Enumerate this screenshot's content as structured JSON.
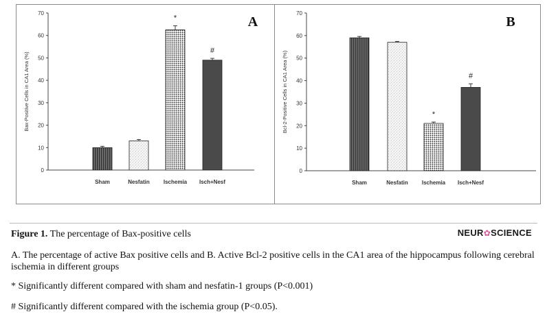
{
  "chart_data": [
    {
      "type": "bar",
      "panel_label": "A",
      "ylabel": "Bax-Positive Cells in CA1 Area (%)",
      "xlabel": "",
      "ylim": [
        0,
        70
      ],
      "yticks": [
        0,
        10,
        20,
        30,
        40,
        50,
        60,
        70
      ],
      "categories": [
        "Sham",
        "Nesfatin",
        "Ischemia",
        "Isch+Nesf"
      ],
      "values": [
        10,
        13,
        62.5,
        49
      ],
      "errors": [
        0.6,
        0.6,
        1.8,
        0.8
      ],
      "annotations": [
        "",
        "",
        "*",
        "#"
      ],
      "patterns": [
        "vertical-dark",
        "light-speckle",
        "dotted",
        "solid-dark"
      ],
      "grid": false
    },
    {
      "type": "bar",
      "panel_label": "B",
      "ylabel": "Bcl-2-Positive Cells in CA1 Area (%)",
      "xlabel": "",
      "ylim": [
        0,
        70
      ],
      "yticks": [
        0,
        10,
        20,
        30,
        40,
        50,
        60,
        70
      ],
      "categories": [
        "Sham",
        "Nesfatin",
        "Ischemia",
        "Isch+Nesf"
      ],
      "values": [
        59,
        57,
        21,
        37
      ],
      "errors": [
        0.6,
        0.4,
        0.6,
        1.6
      ],
      "annotations": [
        "",
        "",
        "*",
        "#"
      ],
      "patterns": [
        "vertical-dark",
        "light-speckle",
        "dotted",
        "solid-dark"
      ],
      "grid": false
    }
  ],
  "caption": {
    "figure_label": "Figure 1.",
    "title": "The percentage of Bax-positive cells",
    "description": "A. The percentage of active Bax positive cells and B. Active Bcl-2 positive cells in the CA1 area of the hippocampus following cerebral ischemia in different groups",
    "note_star": "* Significantly different compared with sham and nesfatin-1 groups (P<0.001)",
    "note_hash": "# Significantly different compared with the ischemia group (P<0.05)."
  },
  "brand": {
    "left": "NEUR",
    "right": "SCIENCE",
    "icon": "flower-icon"
  },
  "colors": {
    "dark_bar": "#4a4a4a",
    "pattern_dark": "#333333",
    "axis": "#444444",
    "border": "#8a8a8a",
    "brand_icon": "#e0529a"
  }
}
